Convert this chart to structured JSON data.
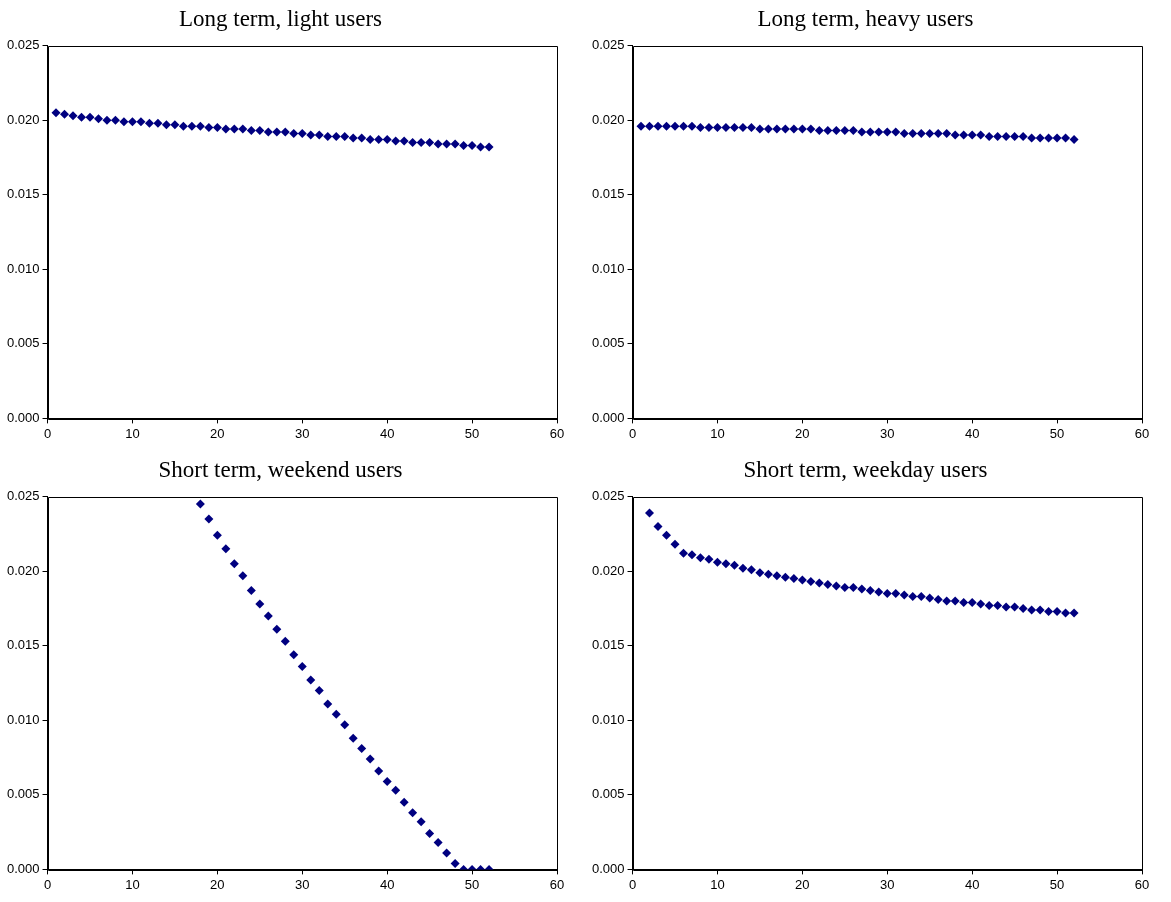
{
  "chart_data": [
    {
      "type": "scatter",
      "title": "Long term, light users",
      "marker": "diamond",
      "grid": false,
      "x": [
        1,
        2,
        3,
        4,
        5,
        6,
        7,
        8,
        9,
        10,
        11,
        12,
        13,
        14,
        15,
        16,
        17,
        18,
        19,
        20,
        21,
        22,
        23,
        24,
        25,
        26,
        27,
        28,
        29,
        30,
        31,
        32,
        33,
        34,
        35,
        36,
        37,
        38,
        39,
        40,
        41,
        42,
        43,
        44,
        45,
        46,
        47,
        48,
        49,
        50,
        51,
        52
      ],
      "series": [
        {
          "color": "#000080",
          "values": [
            0.0205,
            0.0204,
            0.0203,
            0.0202,
            0.0202,
            0.0201,
            0.02,
            0.02,
            0.0199,
            0.0199,
            0.0199,
            0.0198,
            0.0198,
            0.0197,
            0.0197,
            0.0196,
            0.0196,
            0.0196,
            0.0195,
            0.0195,
            0.0194,
            0.0194,
            0.0194,
            0.0193,
            0.0193,
            0.0192,
            0.0192,
            0.0192,
            0.0191,
            0.0191,
            0.019,
            0.019,
            0.0189,
            0.0189,
            0.0189,
            0.0188,
            0.0188,
            0.0187,
            0.0187,
            0.0187,
            0.0186,
            0.0186,
            0.0185,
            0.0185,
            0.0185,
            0.0184,
            0.0184,
            0.0184,
            0.0183,
            0.0183,
            0.0182,
            0.0182
          ]
        }
      ],
      "xlim": [
        0,
        60
      ],
      "xticks": [
        0,
        10,
        20,
        30,
        40,
        50,
        60
      ],
      "ylim": [
        0,
        0.025
      ],
      "yticks": [
        {
          "value": 0,
          "label": "0.000"
        },
        {
          "value": 0.005,
          "label": "0.005"
        },
        {
          "value": 0.01,
          "label": "0.010"
        },
        {
          "value": 0.015,
          "label": "0.015"
        },
        {
          "value": 0.02,
          "label": "0.020"
        },
        {
          "value": 0.025,
          "label": "0.025"
        }
      ]
    },
    {
      "type": "scatter",
      "title": "Long term, heavy users",
      "marker": "diamond",
      "grid": false,
      "x": [
        1,
        2,
        3,
        4,
        5,
        6,
        7,
        8,
        9,
        10,
        11,
        12,
        13,
        14,
        15,
        16,
        17,
        18,
        19,
        20,
        21,
        22,
        23,
        24,
        25,
        26,
        27,
        28,
        29,
        30,
        31,
        32,
        33,
        34,
        35,
        36,
        37,
        38,
        39,
        40,
        41,
        42,
        43,
        44,
        45,
        46,
        47,
        48,
        49,
        50,
        51,
        52
      ],
      "series": [
        {
          "color": "#000080",
          "values": [
            0.0196,
            0.0196,
            0.0196,
            0.0196,
            0.0196,
            0.0196,
            0.0196,
            0.0195,
            0.0195,
            0.0195,
            0.0195,
            0.0195,
            0.0195,
            0.0195,
            0.0194,
            0.0194,
            0.0194,
            0.0194,
            0.0194,
            0.0194,
            0.0194,
            0.0193,
            0.0193,
            0.0193,
            0.0193,
            0.0193,
            0.0192,
            0.0192,
            0.0192,
            0.0192,
            0.0192,
            0.0191,
            0.0191,
            0.0191,
            0.0191,
            0.0191,
            0.0191,
            0.019,
            0.019,
            0.019,
            0.019,
            0.0189,
            0.0189,
            0.0189,
            0.0189,
            0.0189,
            0.0188,
            0.0188,
            0.0188,
            0.0188,
            0.0188,
            0.0187
          ]
        }
      ],
      "xlim": [
        0,
        60
      ],
      "xticks": [
        0,
        10,
        20,
        30,
        40,
        50,
        60
      ],
      "ylim": [
        0,
        0.025
      ],
      "yticks": [
        {
          "value": 0,
          "label": "0.000"
        },
        {
          "value": 0.005,
          "label": "0.005"
        },
        {
          "value": 0.01,
          "label": "0.010"
        },
        {
          "value": 0.015,
          "label": "0.015"
        },
        {
          "value": 0.02,
          "label": "0.020"
        },
        {
          "value": 0.025,
          "label": "0.025"
        }
      ]
    },
    {
      "type": "scatter",
      "title": "Short term, weekend users",
      "marker": "diamond",
      "grid": false,
      "x": [
        18,
        19,
        20,
        21,
        22,
        23,
        24,
        25,
        26,
        27,
        28,
        29,
        30,
        31,
        32,
        33,
        34,
        35,
        36,
        37,
        38,
        39,
        40,
        41,
        42,
        43,
        44,
        45,
        46,
        47,
        48,
        49,
        50,
        51,
        52
      ],
      "series": [
        {
          "color": "#000080",
          "values": [
            0.0245,
            0.0235,
            0.0224,
            0.0215,
            0.0205,
            0.0197,
            0.0187,
            0.0178,
            0.017,
            0.0161,
            0.0153,
            0.0144,
            0.0136,
            0.0127,
            0.012,
            0.0111,
            0.0104,
            0.0097,
            0.0088,
            0.0081,
            0.0074,
            0.0066,
            0.0059,
            0.0053,
            0.0045,
            0.0038,
            0.0032,
            0.0024,
            0.0018,
            0.0011,
            0.0004,
            0,
            0,
            0,
            0
          ]
        }
      ],
      "xlim": [
        0,
        60
      ],
      "xticks": [
        0,
        10,
        20,
        30,
        40,
        50,
        60
      ],
      "ylim": [
        0,
        0.025
      ],
      "yticks": [
        {
          "value": 0,
          "label": "0.000"
        },
        {
          "value": 0.005,
          "label": "0.005"
        },
        {
          "value": 0.01,
          "label": "0.010"
        },
        {
          "value": 0.015,
          "label": "0.015"
        },
        {
          "value": 0.02,
          "label": "0.020"
        },
        {
          "value": 0.025,
          "label": "0.025"
        }
      ]
    },
    {
      "type": "scatter",
      "title": "Short term, weekday users",
      "marker": "diamond",
      "grid": false,
      "x": [
        2,
        3,
        4,
        5,
        6,
        7,
        8,
        9,
        10,
        11,
        12,
        13,
        14,
        15,
        16,
        17,
        18,
        19,
        20,
        21,
        22,
        23,
        24,
        25,
        26,
        27,
        28,
        29,
        30,
        31,
        32,
        33,
        34,
        35,
        36,
        37,
        38,
        39,
        40,
        41,
        42,
        43,
        44,
        45,
        46,
        47,
        48,
        49,
        50,
        51,
        52
      ],
      "series": [
        {
          "color": "#000080",
          "values": [
            0.0239,
            0.023,
            0.0224,
            0.0218,
            0.0212,
            0.0211,
            0.0209,
            0.0208,
            0.0206,
            0.0205,
            0.0204,
            0.0202,
            0.0201,
            0.0199,
            0.0198,
            0.0197,
            0.0196,
            0.0195,
            0.0194,
            0.0193,
            0.0192,
            0.0191,
            0.019,
            0.0189,
            0.0189,
            0.0188,
            0.0187,
            0.0186,
            0.0185,
            0.0185,
            0.0184,
            0.0183,
            0.0183,
            0.0182,
            0.0181,
            0.018,
            0.018,
            0.0179,
            0.0179,
            0.0178,
            0.0177,
            0.0177,
            0.0176,
            0.0176,
            0.0175,
            0.0174,
            0.0174,
            0.0173,
            0.0173,
            0.0172,
            0.0172
          ]
        }
      ],
      "xlim": [
        0,
        60
      ],
      "xticks": [
        0,
        10,
        20,
        30,
        40,
        50,
        60
      ],
      "ylim": [
        0,
        0.025
      ],
      "yticks": [
        {
          "value": 0,
          "label": "0.000"
        },
        {
          "value": 0.005,
          "label": "0.005"
        },
        {
          "value": 0.01,
          "label": "0.010"
        },
        {
          "value": 0.015,
          "label": "0.015"
        },
        {
          "value": 0.02,
          "label": "0.020"
        },
        {
          "value": 0.025,
          "label": "0.025"
        }
      ]
    }
  ]
}
